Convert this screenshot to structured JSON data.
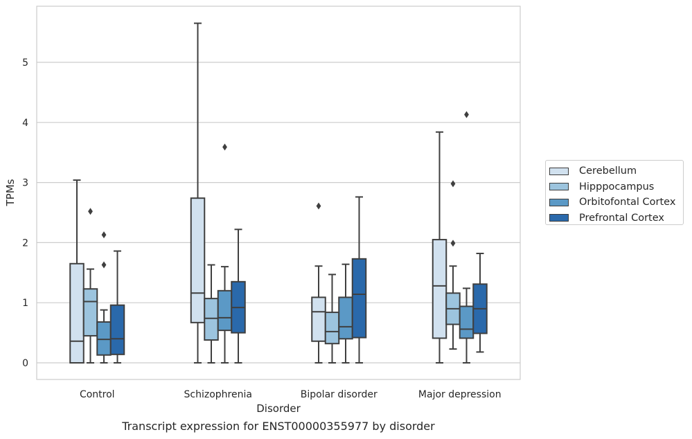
{
  "chart_data": {
    "type": "box",
    "title": "",
    "caption": "Transcript expression for ENST00000355977 by disorder",
    "xlabel": "Disorder",
    "ylabel": "TPMs",
    "ylim": [
      -0.27,
      5.9
    ],
    "yticks": [
      0,
      1,
      2,
      3,
      4,
      5
    ],
    "grid": true,
    "legend_position": "right",
    "categories": [
      "Control",
      "Schizophrenia",
      "Bipolar disorder",
      "Major depression"
    ],
    "series": [
      {
        "name": "Cerebellum",
        "color": "#d1e1ef",
        "boxes": [
          {
            "whisker_low": 0,
            "q1": 0,
            "median": 0.36,
            "q3": 1.65,
            "whisker_high": 3.04,
            "outliers": []
          },
          {
            "whisker_low": 0,
            "q1": 0.67,
            "median": 1.16,
            "q3": 2.74,
            "whisker_high": 5.65,
            "outliers": []
          },
          {
            "whisker_low": 0,
            "q1": 0.36,
            "median": 0.85,
            "q3": 1.09,
            "whisker_high": 1.61,
            "outliers": [
              2.61
            ]
          },
          {
            "whisker_low": 0,
            "q1": 0.41,
            "median": 1.28,
            "q3": 2.05,
            "whisker_high": 3.84,
            "outliers": []
          }
        ]
      },
      {
        "name": "Hipppocampus",
        "color": "#9cc4de",
        "boxes": [
          {
            "whisker_low": 0,
            "q1": 0.45,
            "median": 1.02,
            "q3": 1.23,
            "whisker_high": 1.56,
            "outliers": [
              2.52
            ]
          },
          {
            "whisker_low": 0,
            "q1": 0.38,
            "median": 0.74,
            "q3": 1.07,
            "whisker_high": 1.63,
            "outliers": []
          },
          {
            "whisker_low": 0,
            "q1": 0.32,
            "median": 0.52,
            "q3": 0.84,
            "whisker_high": 1.47,
            "outliers": []
          },
          {
            "whisker_low": 0.23,
            "q1": 0.64,
            "median": 0.9,
            "q3": 1.16,
            "whisker_high": 1.61,
            "outliers": [
              1.99,
              2.98
            ]
          }
        ]
      },
      {
        "name": "Orbitofontal Cortex",
        "color": "#5b99c6",
        "boxes": [
          {
            "whisker_low": 0,
            "q1": 0.13,
            "median": 0.39,
            "q3": 0.68,
            "whisker_high": 0.88,
            "outliers": [
              1.63,
              2.13
            ]
          },
          {
            "whisker_low": 0,
            "q1": 0.54,
            "median": 0.75,
            "q3": 1.2,
            "whisker_high": 1.6,
            "outliers": [
              3.59
            ]
          },
          {
            "whisker_low": 0,
            "q1": 0.4,
            "median": 0.6,
            "q3": 1.09,
            "whisker_high": 1.64,
            "outliers": []
          },
          {
            "whisker_low": 0,
            "q1": 0.41,
            "median": 0.56,
            "q3": 0.94,
            "whisker_high": 1.24,
            "outliers": [
              4.13
            ]
          }
        ]
      },
      {
        "name": "Prefrontal Cortex",
        "color": "#2a69ab",
        "boxes": [
          {
            "whisker_low": 0,
            "q1": 0.14,
            "median": 0.4,
            "q3": 0.96,
            "whisker_high": 1.86,
            "outliers": []
          },
          {
            "whisker_low": 0,
            "q1": 0.5,
            "median": 0.92,
            "q3": 1.35,
            "whisker_high": 2.22,
            "outliers": []
          },
          {
            "whisker_low": 0,
            "q1": 0.42,
            "median": 1.14,
            "q3": 1.73,
            "whisker_high": 2.76,
            "outliers": []
          },
          {
            "whisker_low": 0.18,
            "q1": 0.49,
            "median": 0.9,
            "q3": 1.31,
            "whisker_high": 1.82,
            "outliers": []
          }
        ]
      }
    ]
  }
}
